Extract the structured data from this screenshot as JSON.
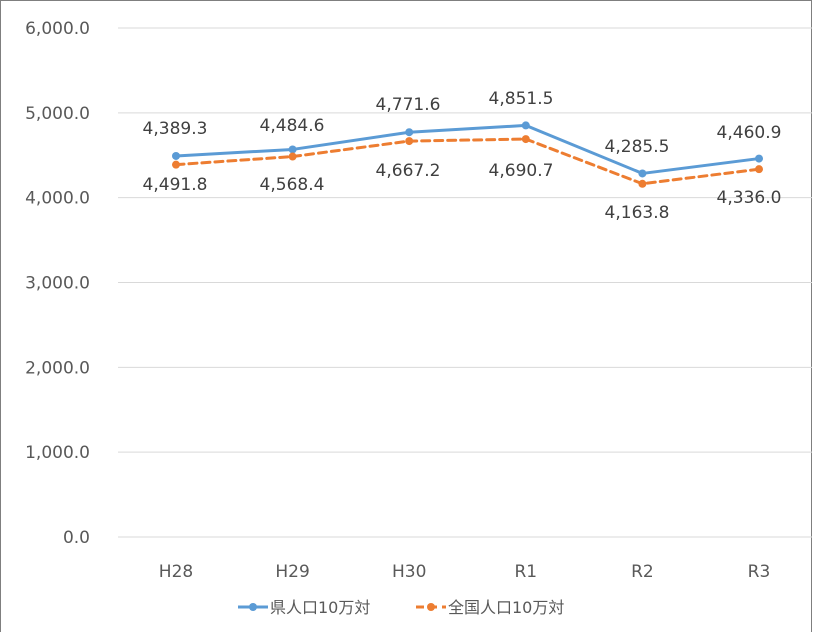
{
  "chart_data": {
    "type": "line",
    "categories": [
      "H28",
      "H29",
      "H30",
      "R1",
      "R2",
      "R3"
    ],
    "ylim": [
      0,
      6000
    ],
    "yticks": [
      0,
      1000,
      2000,
      3000,
      4000,
      5000,
      6000
    ],
    "ytick_labels": [
      "0.0",
      "1,000.0",
      "2,000.0",
      "3,000.0",
      "4,000.0",
      "5,000.0",
      "6,000.0"
    ],
    "grid": true,
    "legend_position": "bottom",
    "series": [
      {
        "name": "県人口10万対",
        "values": [
          4491.8,
          4568.4,
          4771.6,
          4851.5,
          4285.5,
          4460.9
        ],
        "data_labels": [
          "4,491.8",
          "4,568.4",
          "4,771.6",
          "4,851.5",
          "4,285.5",
          "4,460.9"
        ],
        "color": "#5b9bd5",
        "style": "solid"
      },
      {
        "name": "全国人口10万対",
        "values": [
          4389.3,
          4484.6,
          4667.2,
          4690.7,
          4163.8,
          4336.0
        ],
        "data_labels": [
          "4,389.3",
          "4,484.6",
          "4,667.2",
          "4,690.7",
          "4,163.8",
          "4,336.0"
        ],
        "color": "#ed7d31",
        "style": "dashed"
      }
    ]
  }
}
